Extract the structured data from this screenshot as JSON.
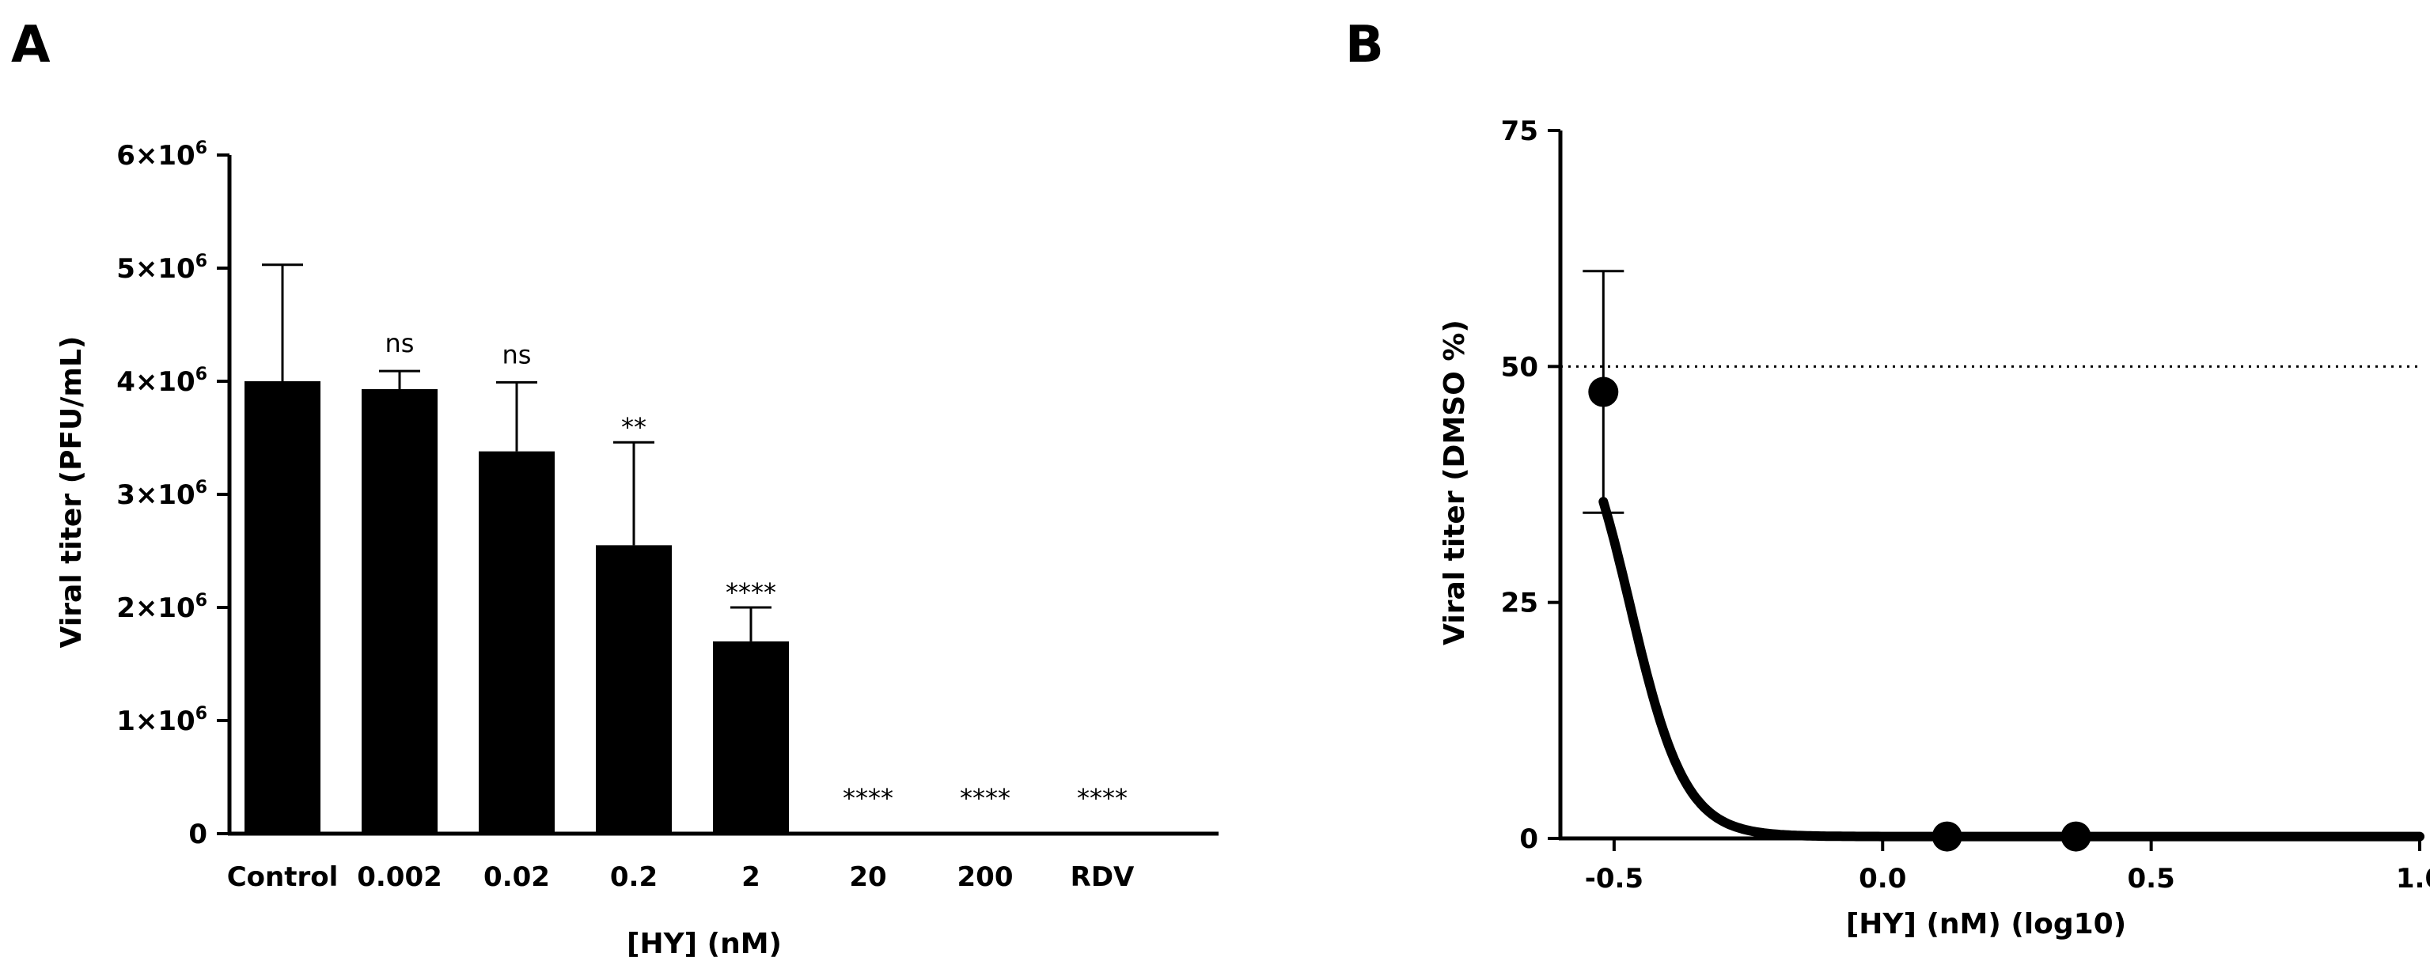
{
  "chart_data": [
    {
      "panel": "A",
      "type": "bar",
      "xlabel": "[HY] (nM)",
      "ylabel": "Viral titer (PFU/mL)",
      "ylim": [
        0,
        6000000
      ],
      "yticks": [
        {
          "value": 0,
          "label": "0"
        },
        {
          "value": 1000000,
          "label": "1×10",
          "exp": "6"
        },
        {
          "value": 2000000,
          "label": "2×10",
          "exp": "6"
        },
        {
          "value": 3000000,
          "label": "3×10",
          "exp": "6"
        },
        {
          "value": 4000000,
          "label": "4×10",
          "exp": "6"
        },
        {
          "value": 5000000,
          "label": "5×10",
          "exp": "6"
        },
        {
          "value": 6000000,
          "label": "6×10",
          "exp": "6"
        }
      ],
      "categories": [
        "Control",
        "0.002",
        "0.02",
        "0.2",
        "2",
        "20",
        "200",
        "RDV"
      ],
      "values": [
        4000000,
        3930000,
        3380000,
        2550000,
        1700000,
        0,
        0,
        0
      ],
      "errors": [
        1030000,
        160000,
        610000,
        910000,
        300000,
        0,
        0,
        0
      ],
      "significance": [
        "",
        "ns",
        "ns",
        "**",
        "****",
        "****",
        "****",
        "****"
      ]
    },
    {
      "panel": "B",
      "type": "line",
      "xlabel": "[HY] (nM) (log10)",
      "ylabel": "Viral titer (DMSO %)",
      "xlim": [
        -0.6,
        1.0
      ],
      "ylim": [
        0,
        75
      ],
      "xticks": [
        {
          "value": -0.5,
          "label": "-0.5"
        },
        {
          "value": 0.0,
          "label": "0.0"
        },
        {
          "value": 0.5,
          "label": "0.5"
        },
        {
          "value": 1.0,
          "label": "1.0"
        }
      ],
      "yticks": [
        {
          "value": 0,
          "label": "0"
        },
        {
          "value": 25,
          "label": "25"
        },
        {
          "value": 50,
          "label": "50"
        },
        {
          "value": 75,
          "label": "75"
        }
      ],
      "reference_line_y": 50,
      "points": [
        {
          "x": -0.52,
          "y": 47.3,
          "err": 12.8
        },
        {
          "x": 0.12,
          "y": 0.2,
          "err": 0
        },
        {
          "x": 0.36,
          "y": 0.2,
          "err": 0
        }
      ],
      "fit": {
        "top": 49.0,
        "bottom": 0.2,
        "log_ic50": -0.47,
        "hill_slope": -8.5,
        "x_start": -0.52,
        "x_end": 1.0
      }
    }
  ]
}
